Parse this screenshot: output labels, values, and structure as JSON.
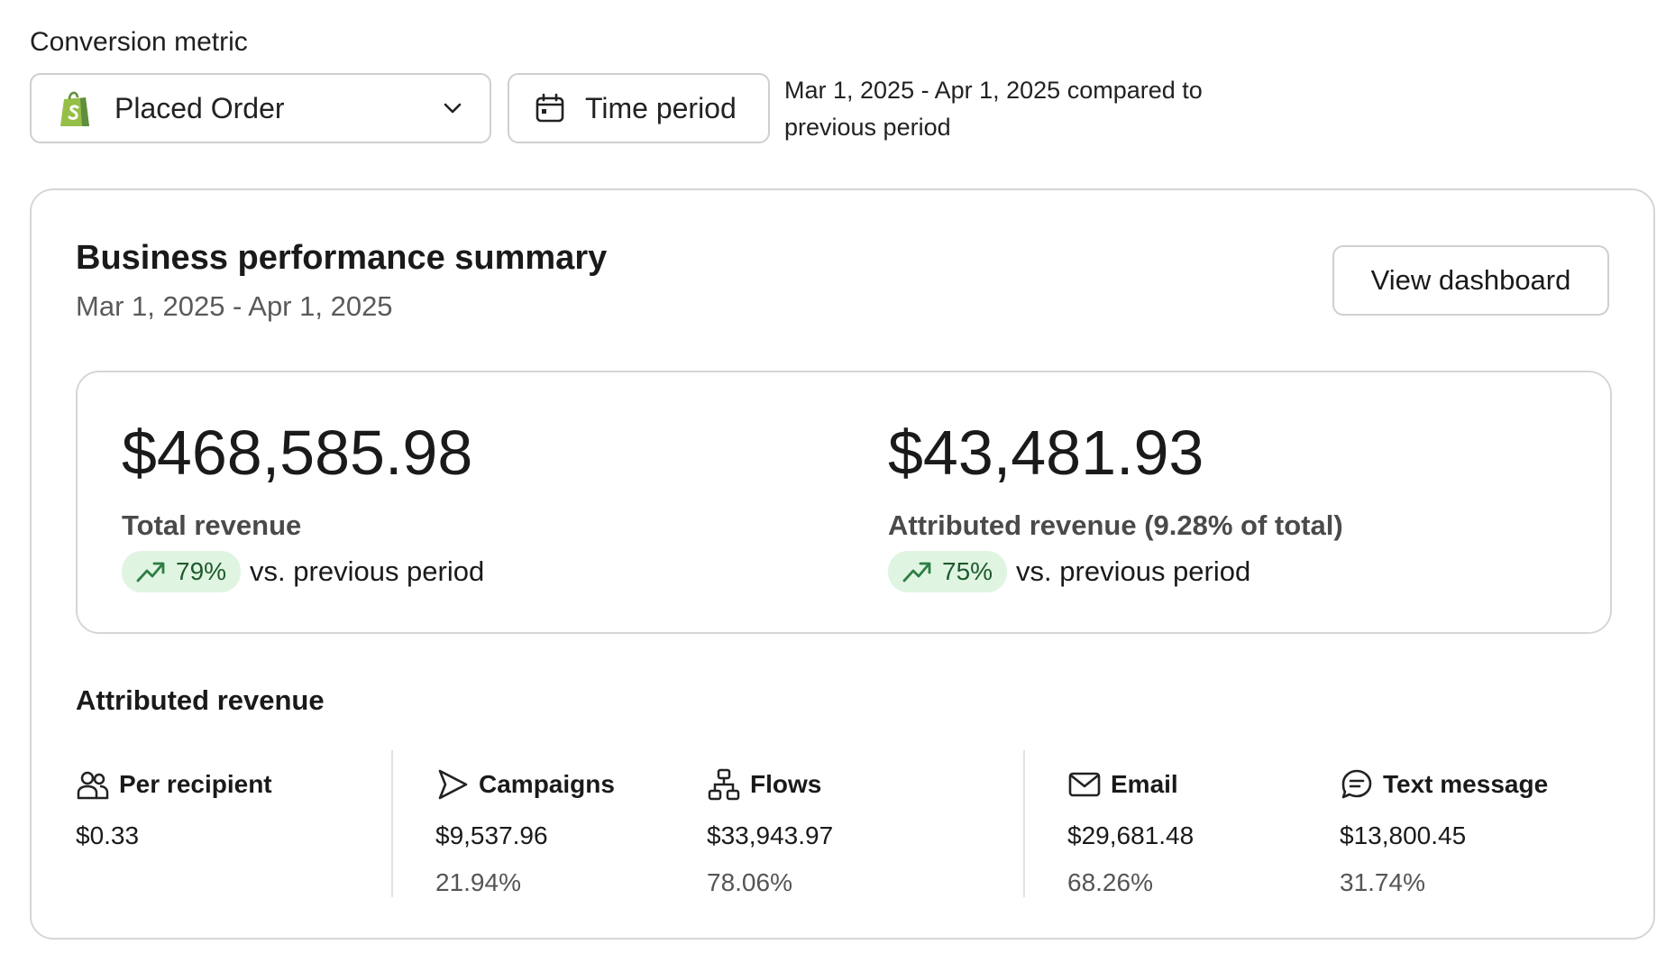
{
  "conversion_metric": {
    "label": "Conversion metric",
    "selected": "Placed Order",
    "time_period_button": "Time period",
    "compare_text": "Mar 1, 2025 - Apr 1, 2025 compared to previous period"
  },
  "summary": {
    "title": "Business performance summary",
    "date_range": "Mar 1, 2025 - Apr 1, 2025",
    "view_dashboard": "View dashboard",
    "total": {
      "value": "$468,585.98",
      "label": "Total revenue",
      "change": "79%",
      "vs": "vs. previous period"
    },
    "attributed": {
      "value": "$43,481.93",
      "label": "Attributed revenue (9.28% of total)",
      "change": "75%",
      "vs": "vs. previous period"
    }
  },
  "attributed_revenue": {
    "heading": "Attributed revenue",
    "per_recipient": {
      "label": "Per recipient",
      "value": "$0.33"
    },
    "campaigns": {
      "label": "Campaigns",
      "value": "$9,537.96",
      "percent": "21.94%"
    },
    "flows": {
      "label": "Flows",
      "value": "$33,943.97",
      "percent": "78.06%"
    },
    "email": {
      "label": "Email",
      "value": "$29,681.48",
      "percent": "68.26%"
    },
    "text_message": {
      "label": "Text message",
      "value": "$13,800.45",
      "percent": "31.74%"
    }
  },
  "colors": {
    "badge_bg": "#dff5e1",
    "badge_text": "#1e5a2e",
    "shopify_green": "#95bf47",
    "border": "#d6d6d6"
  },
  "icons": [
    "shopify-bag-icon",
    "chevron-down-icon",
    "calendar-icon",
    "trend-up-icon",
    "users-icon",
    "send-icon",
    "flow-icon",
    "mail-icon",
    "chat-icon"
  ]
}
